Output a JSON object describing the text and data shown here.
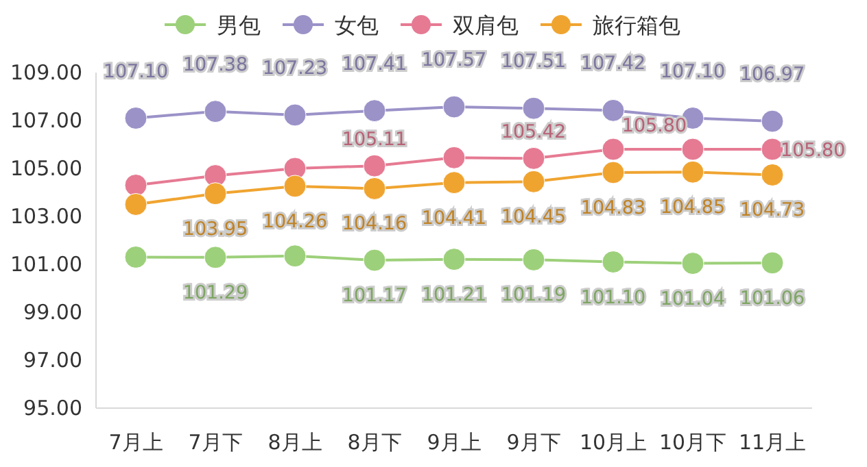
{
  "chart_data": {
    "type": "line",
    "categories": [
      "7月上",
      "7月下",
      "8月上",
      "8月下",
      "9月上",
      "9月下",
      "10月上",
      "10月下",
      "11月上"
    ],
    "series": [
      {
        "name": "男包",
        "color": "#9dd07a",
        "values": [
          101.3,
          101.29,
          101.35,
          101.17,
          101.21,
          101.19,
          101.1,
          101.04,
          101.06
        ],
        "value_labels": [
          null,
          "101.29",
          null,
          "101.17",
          "101.21",
          "101.19",
          "101.10",
          "101.04",
          "101.06"
        ]
      },
      {
        "name": "女包",
        "color": "#9b92c8",
        "values": [
          107.1,
          107.38,
          107.23,
          107.41,
          107.57,
          107.51,
          107.42,
          107.1,
          106.97
        ],
        "value_labels": [
          "107.10",
          "107.38",
          "107.23",
          "107.41",
          "107.57",
          "107.51",
          "107.42",
          "107.10",
          "106.97"
        ]
      },
      {
        "name": "双肩包",
        "color": "#e67a93",
        "values": [
          104.3,
          104.7,
          105.0,
          105.11,
          105.45,
          105.42,
          105.8,
          105.8,
          105.8
        ],
        "value_labels": [
          null,
          null,
          null,
          "105.11",
          null,
          "105.42",
          null,
          "105.80",
          "105.80"
        ]
      },
      {
        "name": "旅行箱包",
        "color": "#f0a430",
        "values": [
          103.5,
          103.95,
          104.26,
          104.16,
          104.41,
          104.45,
          104.83,
          104.85,
          104.73
        ],
        "value_labels": [
          null,
          "103.95",
          "104.26",
          "104.16",
          "104.41",
          "104.45",
          "104.83",
          "104.85",
          "104.73"
        ]
      }
    ],
    "ylim": [
      95,
      109
    ],
    "yticks": [
      {
        "value": 95,
        "label": "95.00"
      },
      {
        "value": 97,
        "label": "97.00"
      },
      {
        "value": 99,
        "label": "99.00"
      },
      {
        "value": 101,
        "label": "101.00"
      },
      {
        "value": 103,
        "label": "103.00"
      },
      {
        "value": 105,
        "label": "105.00"
      },
      {
        "value": 107,
        "label": "107.00"
      },
      {
        "value": 109,
        "label": "109.00"
      }
    ],
    "legend": "top",
    "marker": "circle",
    "line_style": "solid"
  }
}
